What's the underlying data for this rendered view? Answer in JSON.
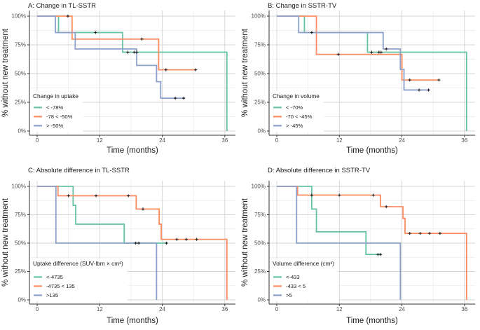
{
  "figure": {
    "background": "#ffffff"
  },
  "palette": {
    "green": "#66c2a5",
    "orange": "#fc8d62",
    "blue": "#8da0cb",
    "censor": "#1a1a1a",
    "axis": "#333333",
    "grid_major": "#d4d4d4",
    "grid_minor": "#e9e9e9",
    "title_text": "#1a1a1a",
    "tick_text": "#4d4d4d"
  },
  "chart_data": [
    {
      "id": "A",
      "type": "line",
      "subtype": "kaplan-meier-step",
      "title": "A: Change in TL-SSTR",
      "xlabel": "Time (months)",
      "ylabel": "% without new treatment",
      "xlim": [
        -1.5,
        38
      ],
      "ylim": [
        0,
        100
      ],
      "xticks": [
        0,
        12,
        24,
        36
      ],
      "xminor": [
        6,
        18,
        30
      ],
      "yticks": [
        0,
        25,
        50,
        75,
        100
      ],
      "yminor": [
        12.5,
        37.5,
        62.5,
        87.5
      ],
      "ytick_labels": [
        "0%",
        "25%",
        "50%",
        "75%",
        "100%"
      ],
      "grid": true,
      "legend": {
        "title": "Change in uptake",
        "position": "bottom-left",
        "entries": [
          {
            "label": "< -78%",
            "color_key": "green"
          },
          {
            "label": "-78 < -50%",
            "color_key": "orange"
          },
          {
            "label": "> -50%",
            "color_key": "blue"
          }
        ]
      },
      "series": [
        {
          "name": "< -78%",
          "color_key": "green",
          "drops": [
            [
              4.1,
              85.7
            ],
            [
              16.4,
              68.6
            ],
            [
              36.4,
              0
            ]
          ],
          "end": 36.4,
          "censors": [
            [
              11.2,
              85.7
            ],
            [
              17.4,
              68.6
            ],
            [
              18.6,
              68.6
            ],
            [
              19.1,
              68.6
            ]
          ]
        },
        {
          "name": "-78 < -50%",
          "color_key": "orange",
          "drops": [
            [
              6.7,
              80
            ],
            [
              23.3,
              53.3
            ]
          ],
          "end": 30.6,
          "censors": [
            [
              5.9,
              100
            ],
            [
              20.1,
              80
            ],
            [
              24.7,
              53.3
            ],
            [
              30.4,
              53.3
            ]
          ]
        },
        {
          "name": "> -50%",
          "color_key": "blue",
          "drops": [
            [
              3.5,
              85.7
            ],
            [
              7.3,
              71.4
            ],
            [
              19.1,
              57.1
            ],
            [
              22.9,
              42.9
            ],
            [
              23.7,
              28.6
            ]
          ],
          "end": 28.4,
          "censors": [
            [
              26.5,
              28.6
            ],
            [
              28.1,
              28.6
            ]
          ]
        }
      ]
    },
    {
      "id": "B",
      "type": "line",
      "subtype": "kaplan-meier-step",
      "title": "B: Change in SSTR-TV",
      "xlabel": "Time (months)",
      "ylabel": "% without new treatment",
      "xlim": [
        -1.5,
        38
      ],
      "ylim": [
        0,
        100
      ],
      "xticks": [
        0,
        12,
        24,
        36
      ],
      "xminor": [
        6,
        18,
        30
      ],
      "yticks": [
        0,
        25,
        50,
        75,
        100
      ],
      "yminor": [
        12.5,
        37.5,
        62.5,
        87.5
      ],
      "ytick_labels": [
        "0%",
        "25%",
        "50%",
        "75%",
        "100%"
      ],
      "grid": true,
      "legend": {
        "title": "Change in volume",
        "position": "bottom-left",
        "entries": [
          {
            "label": "< -70%",
            "color_key": "green"
          },
          {
            "label": "-70 < -45%",
            "color_key": "orange"
          },
          {
            "label": "> -45%",
            "color_key": "blue"
          }
        ]
      },
      "series": [
        {
          "name": "< -70%",
          "color_key": "green",
          "drops": [
            [
              5.3,
              85.7
            ],
            [
              17.4,
              68.6
            ],
            [
              36.4,
              0
            ]
          ],
          "end": 36.4,
          "censors": [
            [
              6.7,
              85.7
            ],
            [
              18.2,
              68.6
            ],
            [
              19.6,
              68.6
            ],
            [
              20.0,
              68.6
            ]
          ]
        },
        {
          "name": "-70 < -45%",
          "color_key": "orange",
          "drops": [
            [
              7.6,
              66.7
            ],
            [
              24.0,
              44.4
            ]
          ],
          "end": 31.2,
          "censors": [
            [
              11.8,
              66.7
            ],
            [
              25.5,
              44.4
            ],
            [
              31.1,
              44.4
            ]
          ]
        },
        {
          "name": "> -45%",
          "color_key": "blue",
          "drops": [
            [
              4.2,
              85.7
            ],
            [
              20.4,
              71.4
            ],
            [
              23.7,
              53.6
            ],
            [
              24.4,
              35.7
            ]
          ],
          "end": 29.4,
          "censors": [
            [
              21.0,
              71.4
            ],
            [
              27.3,
              35.7
            ],
            [
              29.1,
              35.7
            ]
          ]
        }
      ]
    },
    {
      "id": "C",
      "type": "line",
      "subtype": "kaplan-meier-step",
      "title": "C: Absolute difference in TL-SSTR",
      "xlabel": "Time (months)",
      "ylabel": "% without new treatment",
      "xlim": [
        -1.5,
        38
      ],
      "ylim": [
        0,
        100
      ],
      "xticks": [
        0,
        12,
        24,
        36
      ],
      "xminor": [
        6,
        18,
        30
      ],
      "yticks": [
        0,
        25,
        50,
        75,
        100
      ],
      "yminor": [
        12.5,
        37.5,
        62.5,
        87.5
      ],
      "ytick_labels": [
        "0%",
        "25%",
        "50%",
        "75%",
        "100%"
      ],
      "grid": true,
      "legend": {
        "title": "Uptake difference (SUV-lbm × cm³)",
        "position": "bottom-left",
        "entries": [
          {
            "label": "<-4735",
            "color_key": "green"
          },
          {
            "label": "-4735 < 135",
            "color_key": "orange"
          },
          {
            "label": ">135",
            "color_key": "blue"
          }
        ]
      },
      "series": [
        {
          "name": "<-4735",
          "color_key": "green",
          "drops": [
            [
              6.9,
              83.3
            ],
            [
              7.4,
              66.7
            ],
            [
              16.7,
              50
            ]
          ],
          "end": 25.1,
          "censors": [
            [
              18.9,
              50
            ],
            [
              19.5,
              50
            ],
            [
              24.8,
              50
            ]
          ]
        },
        {
          "name": "-4735 < 135",
          "color_key": "orange",
          "drops": [
            [
              4.0,
              91.7
            ],
            [
              19.0,
              80
            ],
            [
              23.4,
              66.7
            ],
            [
              23.8,
              53.3
            ],
            [
              36.4,
              0
            ]
          ],
          "end": 36.4,
          "censors": [
            [
              6.0,
              91.7
            ],
            [
              11.3,
              91.7
            ],
            [
              17.5,
              91.7
            ],
            [
              20.3,
              80
            ],
            [
              26.8,
              53.3
            ],
            [
              28.6,
              53.3
            ],
            [
              30.6,
              53.3
            ]
          ]
        },
        {
          "name": ">135",
          "color_key": "blue",
          "drops": [
            [
              3.6,
              50
            ],
            [
              22.9,
              0
            ]
          ],
          "end": 22.9,
          "censors": []
        }
      ]
    },
    {
      "id": "D",
      "type": "line",
      "subtype": "kaplan-meier-step",
      "title": "D: Absolute difference in SSTR-TV",
      "xlabel": "Time (months)",
      "ylabel": "% without new treatment",
      "xlim": [
        -1.5,
        38
      ],
      "ylim": [
        0,
        100
      ],
      "xticks": [
        0,
        12,
        24,
        36
      ],
      "xminor": [
        6,
        18,
        30
      ],
      "yticks": [
        0,
        25,
        50,
        75,
        100
      ],
      "yminor": [
        12.5,
        37.5,
        62.5,
        87.5
      ],
      "ytick_labels": [
        "0%",
        "25%",
        "50%",
        "75%",
        "100%"
      ],
      "grid": true,
      "legend": {
        "title": "Volume difference (cm³)",
        "position": "bottom-left",
        "entries": [
          {
            "label": "<-433",
            "color_key": "green"
          },
          {
            "label": "-433 < 5",
            "color_key": "orange"
          },
          {
            "label": ">5",
            "color_key": "blue"
          }
        ]
      },
      "series": [
        {
          "name": "<-433",
          "color_key": "green",
          "drops": [
            [
              6.7,
              80
            ],
            [
              7.6,
              60
            ],
            [
              17.1,
              40
            ]
          ],
          "end": 20.1,
          "censors": [
            [
              19.4,
              40
            ],
            [
              19.9,
              40
            ]
          ]
        },
        {
          "name": "-433 < 5",
          "color_key": "orange",
          "drops": [
            [
              4.0,
              92.3
            ],
            [
              19.9,
              82.1
            ],
            [
              24.2,
              71.8
            ],
            [
              24.6,
              58.6
            ],
            [
              36.4,
              0
            ]
          ],
          "end": 36.4,
          "censors": [
            [
              6.7,
              92.3
            ],
            [
              12.0,
              92.3
            ],
            [
              18.5,
              92.3
            ],
            [
              21.0,
              82.1
            ],
            [
              25.5,
              58.6
            ],
            [
              27.5,
              58.6
            ],
            [
              29.3,
              58.6
            ],
            [
              31.3,
              58.6
            ]
          ]
        },
        {
          "name": ">5",
          "color_key": "blue",
          "drops": [
            [
              3.8,
              50
            ],
            [
              23.7,
              0
            ]
          ],
          "end": 23.7,
          "censors": []
        }
      ]
    }
  ]
}
